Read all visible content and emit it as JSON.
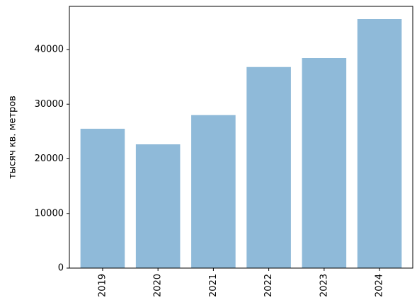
{
  "chart_data": {
    "type": "bar",
    "ylabel": "тысяч кв. метров",
    "categories": [
      "2019",
      "2020",
      "2021",
      "2022",
      "2023",
      "2024"
    ],
    "values": [
      25500,
      22650,
      28000,
      36800,
      38450,
      45570
    ],
    "color": "#8fbad9",
    "ylim": [
      0,
      47900
    ],
    "yticks": [
      0,
      10000,
      20000,
      30000,
      40000
    ],
    "grid": false
  }
}
